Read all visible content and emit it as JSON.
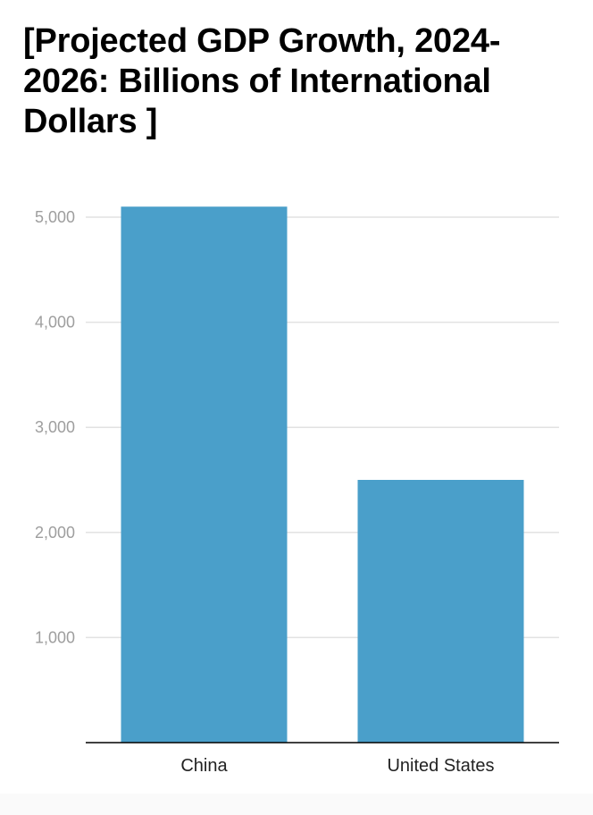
{
  "chart_data": {
    "type": "bar",
    "title": "[Projected GDP Growth, 2024-2026: Billions of International Dollars  ]",
    "categories": [
      "China",
      "United States"
    ],
    "values": [
      5100,
      2500
    ],
    "xlabel": "",
    "ylabel": "",
    "ylim": [
      0,
      5000
    ],
    "yticks": [
      1000,
      2000,
      3000,
      4000,
      5000
    ],
    "ytick_labels": [
      "1,000",
      "2,000",
      "3,000",
      "4,000",
      "5,000"
    ],
    "grid": true,
    "legend": "none",
    "bar_color": "#4a9fca"
  }
}
